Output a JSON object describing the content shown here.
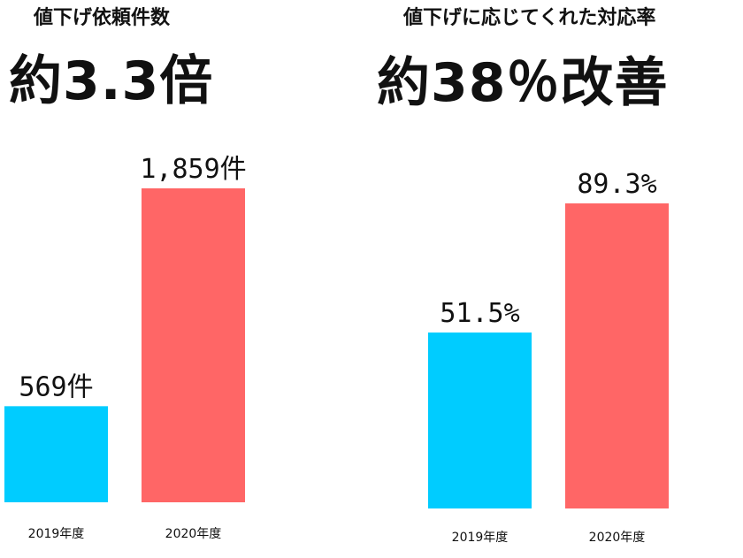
{
  "chart_data": [
    {
      "type": "bar",
      "title": "値下げ依頼件数",
      "headline": "約3.3倍",
      "xlabel": "",
      "ylabel": "",
      "categories": [
        "2019年度",
        "2020年度"
      ],
      "values": [
        569,
        1859
      ],
      "data_labels": [
        "569件",
        "1,859件"
      ],
      "colors": [
        "#00ccff",
        "#ff6666"
      ],
      "ylim": [
        0,
        1859
      ],
      "grid": false,
      "legend": "none"
    },
    {
      "type": "bar",
      "title": "値下げに応じてくれた対応率",
      "headline": "約38％改善",
      "xlabel": "",
      "ylabel": "",
      "categories": [
        "2019年度",
        "2020年度"
      ],
      "values": [
        51.5,
        89.3
      ],
      "data_labels": [
        "51.5%",
        "89.3%"
      ],
      "colors": [
        "#00ccff",
        "#ff6666"
      ],
      "ylim": [
        0,
        89.3
      ],
      "grid": false,
      "legend": "none"
    }
  ]
}
